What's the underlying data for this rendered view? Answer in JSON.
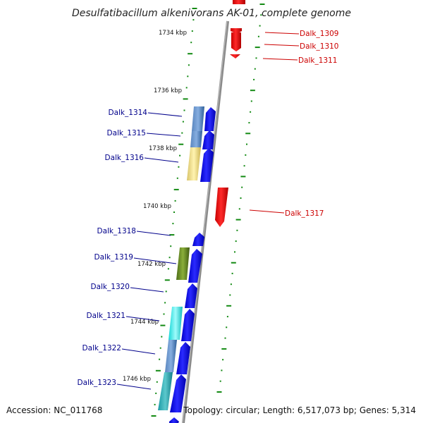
{
  "title": "Desulfatibacillum alkenivorans AK-01, complete genome",
  "footer": {
    "accession": "Accession: NC_011768",
    "topology": "Topology: circular; Length: 6,517,073 bp; Genes: 5,314"
  },
  "colors": {
    "forward_gene": "#0000ee",
    "reverse_gene": "#ee0000",
    "forward_label": "#00008b",
    "reverse_label": "#cc0000",
    "tick": "#138a13",
    "axis": "#888888"
  },
  "scale_labels": [
    "1734 kbp",
    "1736 kbp",
    "1738 kbp",
    "1740 kbp",
    "1742 kbp",
    "1744 kbp",
    "1746 kbp"
  ],
  "genes_reverse": [
    "Dalk_1309",
    "Dalk_1310",
    "Dalk_1311",
    "Dalk_1317"
  ],
  "genes_forward": [
    "Dalk_1314",
    "Dalk_1315",
    "Dalk_1316",
    "Dalk_1318",
    "Dalk_1319",
    "Dalk_1320",
    "Dalk_1321",
    "Dalk_1322",
    "Dalk_1323"
  ]
}
